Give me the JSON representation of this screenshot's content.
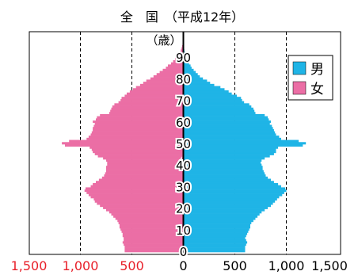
{
  "chart_data": {
    "type": "bar",
    "orientation": "population-pyramid",
    "title": "全　国　（平成12年）",
    "unit_label": "（歳）",
    "age_tick_labels": [
      "0",
      "10",
      "20",
      "30",
      "40",
      "50",
      "60",
      "70",
      "80",
      "90"
    ],
    "x_tick_labels_left": [
      "1,500",
      "1,000",
      "500"
    ],
    "x_tick_labels_right": [
      "0",
      "500",
      "1,000",
      "1,500"
    ],
    "x_tick_values_left": [
      1500,
      1000,
      500
    ],
    "x_tick_values_right": [
      0,
      500,
      1000,
      1500
    ],
    "xlim": [
      0,
      1500
    ],
    "ylim": [
      0,
      100
    ],
    "grid_values": [
      500,
      1000
    ],
    "legend_position": "top-right",
    "ages": [
      0,
      1,
      2,
      3,
      4,
      5,
      6,
      7,
      8,
      9,
      10,
      11,
      12,
      13,
      14,
      15,
      16,
      17,
      18,
      19,
      20,
      21,
      22,
      23,
      24,
      25,
      26,
      27,
      28,
      29,
      30,
      31,
      32,
      33,
      34,
      35,
      36,
      37,
      38,
      39,
      40,
      41,
      42,
      43,
      44,
      45,
      46,
      47,
      48,
      49,
      50,
      51,
      52,
      53,
      54,
      55,
      56,
      57,
      58,
      59,
      60,
      61,
      62,
      63,
      64,
      65,
      66,
      67,
      68,
      69,
      70,
      71,
      72,
      73,
      74,
      75,
      76,
      77,
      78,
      79,
      80,
      81,
      82,
      83,
      84,
      85,
      86,
      87,
      88,
      89,
      90,
      91,
      92,
      93,
      94,
      95,
      96,
      97,
      98,
      99
    ],
    "series": [
      {
        "name": "男",
        "color": "#1fb4e6",
        "values": [
          600,
          600,
          600,
          610,
          620,
          610,
          600,
          610,
          620,
          630,
          640,
          650,
          650,
          660,
          680,
          700,
          720,
          740,
          760,
          790,
          820,
          850,
          870,
          890,
          910,
          930,
          960,
          980,
          1000,
          990,
          950,
          920,
          880,
          850,
          820,
          800,
          790,
          780,
          770,
          770,
          760,
          750,
          760,
          790,
          840,
          880,
          900,
          900,
          920,
          1160,
          1190,
          1120,
          950,
          930,
          900,
          890,
          880,
          870,
          860,
          840,
          850,
          830,
          820,
          790,
          700,
          690,
          680,
          660,
          640,
          590,
          570,
          560,
          520,
          470,
          440,
          400,
          360,
          300,
          260,
          230,
          190,
          160,
          140,
          120,
          100,
          80,
          70,
          55,
          45,
          35,
          28,
          20,
          15,
          10,
          8,
          6,
          4,
          3,
          2,
          1
        ]
      },
      {
        "name": "女",
        "color": "#eb6ea5",
        "values": [
          570,
          570,
          570,
          580,
          590,
          580,
          580,
          590,
          590,
          600,
          610,
          620,
          620,
          630,
          640,
          660,
          680,
          700,
          720,
          750,
          780,
          810,
          840,
          860,
          870,
          900,
          920,
          940,
          960,
          950,
          900,
          880,
          850,
          820,
          790,
          770,
          760,
          750,
          750,
          750,
          740,
          740,
          750,
          780,
          830,
          860,
          880,
          890,
          910,
          1150,
          1180,
          1110,
          940,
          920,
          900,
          890,
          880,
          880,
          870,
          860,
          880,
          850,
          840,
          810,
          720,
          710,
          700,
          690,
          670,
          630,
          610,
          600,
          570,
          550,
          520,
          490,
          460,
          420,
          390,
          360,
          320,
          290,
          260,
          230,
          200,
          170,
          150,
          120,
          100,
          80,
          60,
          45,
          35,
          25,
          18,
          12,
          8,
          5,
          3,
          2
        ]
      }
    ]
  }
}
